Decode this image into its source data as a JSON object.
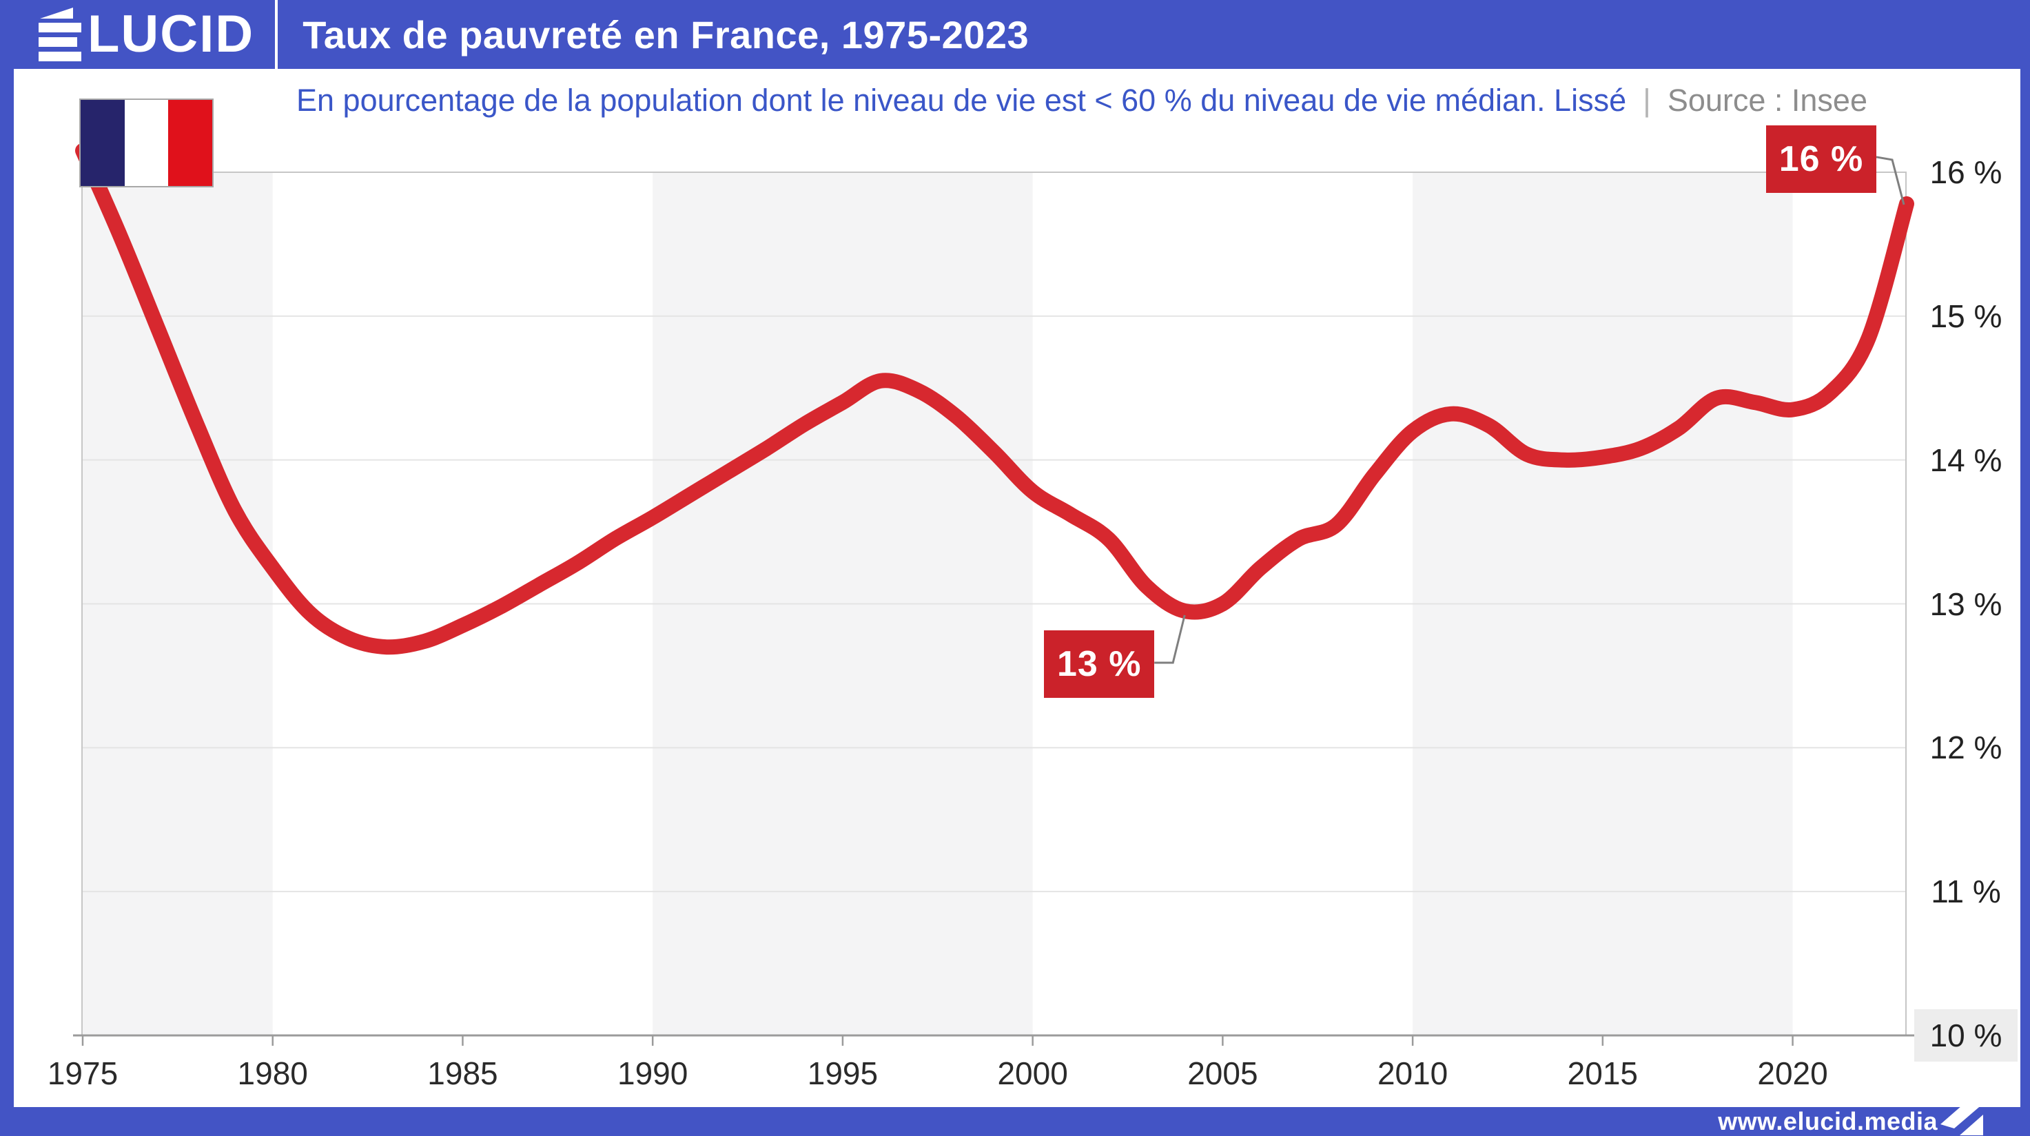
{
  "header": {
    "logo": "ÉLUCID",
    "logo_rest": "LUCID",
    "title": "Taux de pauvreté en France, 1975-2023"
  },
  "subtitle": {
    "text": "En pourcentage de la population dont le niveau de vie est < 60 % du niveau de vie médian. Lissé",
    "separator": "|",
    "source": "Source : Insee"
  },
  "flag": {
    "name": "drapeau-france",
    "colors": [
      "#26246B",
      "#FFFFFF",
      "#E0111B"
    ]
  },
  "footer": {
    "url": "www.elucid.media"
  },
  "chart_data": {
    "type": "line",
    "title": "Taux de pauvreté en France, 1975-2023",
    "series_name": "Taux de pauvreté (seuil à 60 % du niveau de vie médian, lissé)",
    "unit": "%",
    "x": [
      1975,
      1976,
      1977,
      1978,
      1979,
      1980,
      1981,
      1982,
      1983,
      1984,
      1985,
      1986,
      1987,
      1988,
      1989,
      1990,
      1991,
      1992,
      1993,
      1994,
      1995,
      1996,
      1997,
      1998,
      1999,
      2000,
      2001,
      2002,
      2003,
      2004,
      2005,
      2006,
      2007,
      2008,
      2009,
      2010,
      2011,
      2012,
      2013,
      2014,
      2015,
      2016,
      2017,
      2018,
      2019,
      2020,
      2021,
      2022,
      2023
    ],
    "values": [
      16.15,
      15.55,
      14.9,
      14.25,
      13.65,
      13.25,
      12.93,
      12.76,
      12.7,
      12.74,
      12.85,
      12.98,
      13.13,
      13.28,
      13.45,
      13.6,
      13.76,
      13.92,
      14.08,
      14.25,
      14.4,
      14.55,
      14.48,
      14.3,
      14.05,
      13.78,
      13.62,
      13.45,
      13.12,
      12.95,
      13.0,
      13.25,
      13.45,
      13.55,
      13.9,
      14.2,
      14.32,
      14.24,
      14.04,
      14.0,
      14.02,
      14.08,
      14.22,
      14.43,
      14.4,
      14.35,
      14.47,
      14.85,
      15.78
    ],
    "xlim": [
      1975,
      2023
    ],
    "ylim": [
      10,
      16
    ],
    "x_ticks": [
      1975,
      1980,
      1985,
      1990,
      1995,
      2000,
      2005,
      2010,
      2015,
      2020
    ],
    "x_tick_labels": [
      "1975",
      "1980",
      "1985",
      "1990",
      "1995",
      "2000",
      "2005",
      "2010",
      "2015",
      "2020"
    ],
    "y_ticks": [
      16,
      15,
      14,
      13,
      12,
      11,
      10
    ],
    "y_tick_labels": [
      "16 %",
      "15 %",
      "14 %",
      "13 %",
      "12 %",
      "11 %",
      "10 %"
    ],
    "highlighted_y_tick_label": "10 %",
    "grid": true,
    "legend": "none",
    "shaded_bands": [
      [
        1975,
        1980
      ],
      [
        1990,
        2000
      ],
      [
        2010,
        2020
      ]
    ],
    "line_color": "#D7282F",
    "annotation_box_color": "#CB222A",
    "annotations": [
      {
        "label": "13 %",
        "year": 2004,
        "value": 12.95,
        "placement": "below-left"
      },
      {
        "label": "16 %",
        "year": 2023,
        "value": 15.78,
        "placement": "above-left"
      }
    ]
  }
}
